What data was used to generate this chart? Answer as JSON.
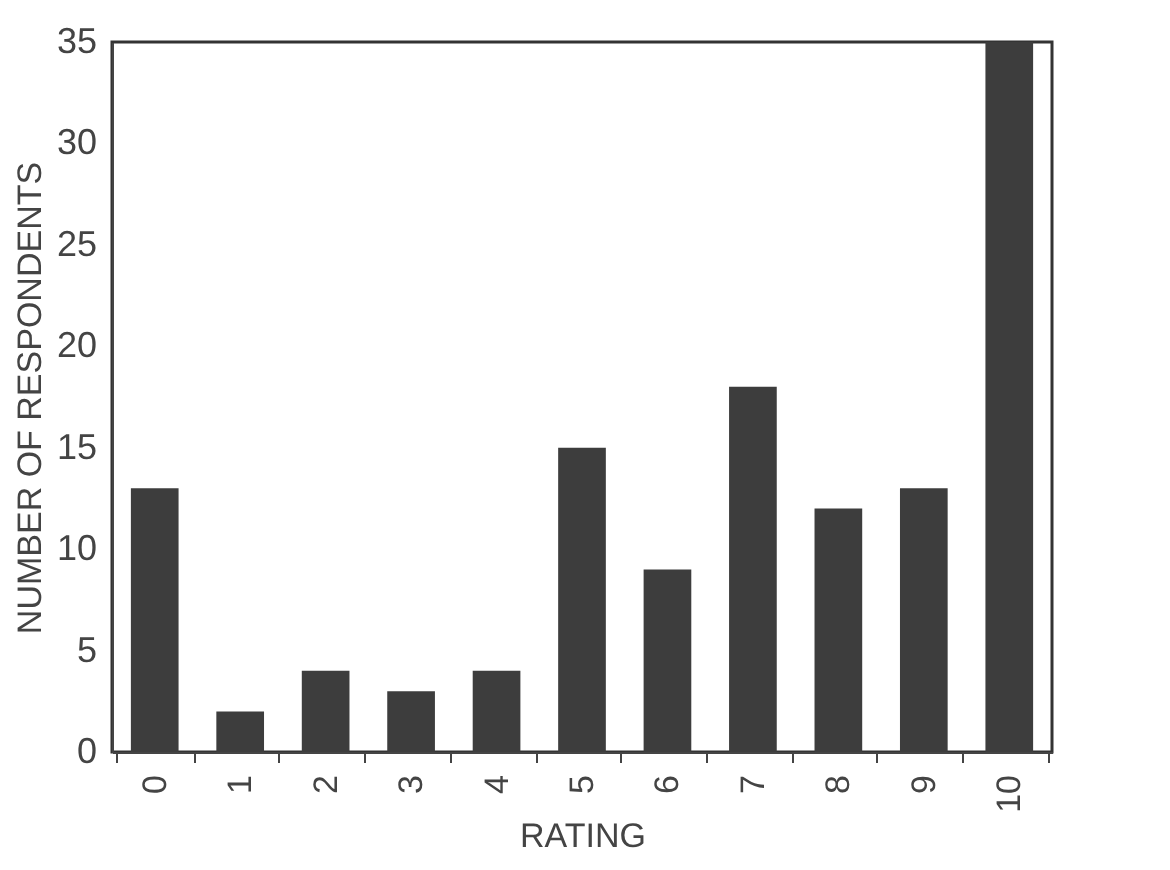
{
  "chart_data": {
    "type": "bar",
    "xlabel": "RATING",
    "ylabel": "NUMBER OF RESPONDENTS",
    "categories": [
      "0",
      "1",
      "2",
      "3",
      "4",
      "5",
      "6",
      "7",
      "8",
      "9",
      "10"
    ],
    "values": [
      13,
      2,
      4,
      3,
      4,
      15,
      9,
      18,
      12,
      13,
      35
    ],
    "color": "#3d3d3d",
    "ylim": [
      0,
      35
    ],
    "yticks": [
      0,
      5,
      10,
      15,
      20,
      25,
      30,
      35
    ],
    "grid": false
  }
}
